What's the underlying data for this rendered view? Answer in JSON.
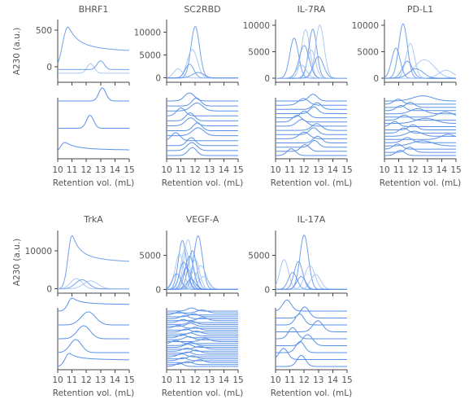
{
  "chart_data": {
    "type": "line",
    "ylabel_top": "A230 (a.u.)",
    "xlabel": "Retention vol. (mL)",
    "x_ticks": [
      10,
      11,
      12,
      13,
      14,
      15
    ],
    "xlim": [
      10,
      15
    ],
    "colors": {
      "line": "#5a91e8",
      "line_light": "#9cbff2",
      "axis": "#444444",
      "text": "#555555"
    },
    "panels": [
      {
        "title": "BHRF1",
        "ylim": [
          -180,
          600
        ],
        "yticks": [
          0,
          500
        ],
        "n_stack": 3,
        "series": [
          {
            "peaks": [
              [
                10.7,
                570,
                0.35
              ]
            ],
            "base": -30,
            "tail": 0.7
          },
          {
            "peaks": [
              [
                12.3,
                130,
                0.25
              ]
            ],
            "base": -90
          },
          {
            "peaks": [
              [
                13.0,
                120,
                0.25
              ]
            ],
            "base": -40
          }
        ]
      },
      {
        "title": "SC2RBD",
        "ylim": [
          -400,
          12000
        ],
        "yticks": [
          0,
          5000,
          10000
        ],
        "n_stack": 12,
        "series": [
          {
            "peaks": [
              [
                12.0,
                11200,
                0.3
              ]
            ]
          },
          {
            "peaks": [
              [
                11.8,
                6200,
                0.35
              ]
            ]
          },
          {
            "peaks": [
              [
                11.6,
                3000,
                0.3
              ]
            ]
          },
          {
            "peaks": [
              [
                10.8,
                2000,
                0.3
              ]
            ]
          },
          {
            "peaks": [
              [
                12.2,
                1200,
                0.4
              ]
            ]
          }
        ]
      },
      {
        "title": "IL-7RA",
        "ylim": [
          -300,
          10500
        ],
        "yticks": [
          0,
          5000,
          10000
        ],
        "n_stack": 14,
        "series": [
          {
            "peaks": [
              [
                11.3,
                7600,
                0.3
              ]
            ]
          },
          {
            "peaks": [
              [
                12.1,
                9200,
                0.3
              ]
            ]
          },
          {
            "peaks": [
              [
                12.6,
                9300,
                0.28
              ]
            ]
          },
          {
            "peaks": [
              [
                13.1,
                10100,
                0.3
              ]
            ]
          },
          {
            "peaks": [
              [
                12.0,
                6200,
                0.35
              ]
            ]
          },
          {
            "peaks": [
              [
                12.5,
                5300,
                0.3
              ]
            ]
          },
          {
            "peaks": [
              [
                13.0,
                4100,
                0.35
              ]
            ]
          },
          {
            "peaks": [
              [
                11.8,
                2500,
                0.35
              ]
            ]
          }
        ]
      },
      {
        "title": "PD-L1",
        "ylim": [
          -300,
          10500
        ],
        "yticks": [
          0,
          5000,
          10000
        ],
        "n_stack": 18,
        "series": [
          {
            "peaks": [
              [
                11.3,
                10300,
                0.3
              ]
            ]
          },
          {
            "peaks": [
              [
                11.8,
                6600,
                0.3
              ]
            ]
          },
          {
            "peaks": [
              [
                10.8,
                5700,
                0.3
              ]
            ]
          },
          {
            "peaks": [
              [
                12.8,
                3500,
                0.7
              ]
            ]
          },
          {
            "peaks": [
              [
                11.6,
                3200,
                0.35
              ]
            ]
          },
          {
            "peaks": [
              [
                14.3,
                1500,
                0.5
              ]
            ]
          },
          {
            "peaks": [
              [
                12.2,
                1800,
                0.5
              ]
            ]
          }
        ]
      },
      {
        "title": "TrkA",
        "ylim": [
          -500,
          14500
        ],
        "yticks": [
          0,
          10000
        ],
        "n_stack": 5,
        "series": [
          {
            "peaks": [
              [
                11.0,
                14000,
                0.28
              ]
            ],
            "tail": 0.8
          },
          {
            "peaks": [
              [
                11.3,
                2700,
                0.4
              ]
            ]
          },
          {
            "peaks": [
              [
                11.7,
                2400,
                0.45
              ]
            ]
          },
          {
            "peaks": [
              [
                12.3,
                2100,
                0.5
              ]
            ]
          }
        ]
      },
      {
        "title": "VEGF-A",
        "ylim": [
          -200,
          8200
        ],
        "yticks": [
          0,
          5000
        ],
        "n_stack": 30,
        "series": [
          {
            "peaks": [
              [
                11.1,
                7200,
                0.28
              ]
            ]
          },
          {
            "peaks": [
              [
                11.5,
                7300,
                0.3
              ]
            ]
          },
          {
            "peaks": [
              [
                12.2,
                7900,
                0.3
              ]
            ]
          },
          {
            "peaks": [
              [
                11.3,
                6000,
                0.3
              ]
            ]
          },
          {
            "peaks": [
              [
                11.8,
                5700,
                0.3
              ]
            ]
          },
          {
            "peaks": [
              [
                10.9,
                5200,
                0.3
              ]
            ]
          },
          {
            "peaks": [
              [
                11.6,
                4900,
                0.3
              ]
            ]
          },
          {
            "peaks": [
              [
                12.0,
                4400,
                0.3
              ]
            ]
          },
          {
            "peaks": [
              [
                11.2,
                4000,
                0.3
              ]
            ]
          },
          {
            "peaks": [
              [
                12.4,
                3500,
                0.35
              ]
            ]
          },
          {
            "peaks": [
              [
                11.4,
                3200,
                0.3
              ]
            ]
          },
          {
            "peaks": [
              [
                11.9,
                2600,
                0.3
              ]
            ]
          },
          {
            "peaks": [
              [
                10.7,
                2300,
                0.3
              ]
            ]
          },
          {
            "peaks": [
              [
                12.6,
                1900,
                0.35
              ]
            ]
          },
          {
            "peaks": [
              [
                11.7,
                1500,
                0.3
              ]
            ]
          }
        ]
      },
      {
        "title": "IL-17A",
        "ylim": [
          -200,
          8200
        ],
        "yticks": [
          0,
          5000
        ],
        "n_stack": 9,
        "series": [
          {
            "peaks": [
              [
                12.0,
                8000,
                0.3
              ]
            ]
          },
          {
            "peaks": [
              [
                10.6,
                4400,
                0.3
              ]
            ]
          },
          {
            "peaks": [
              [
                11.6,
                4100,
                0.3
              ]
            ]
          },
          {
            "peaks": [
              [
                12.4,
                3500,
                0.35
              ]
            ]
          },
          {
            "peaks": [
              [
                11.2,
                2500,
                0.3
              ]
            ]
          },
          {
            "peaks": [
              [
                12.8,
                2200,
                0.35
              ]
            ]
          },
          {
            "peaks": [
              [
                11.8,
                1900,
                0.3
              ]
            ]
          }
        ]
      }
    ]
  }
}
